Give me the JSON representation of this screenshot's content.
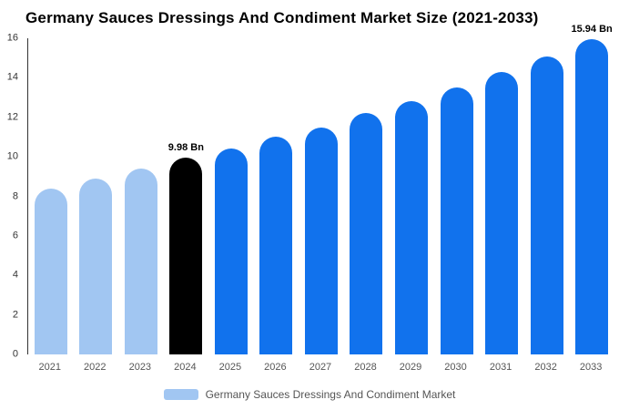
{
  "title": "Germany Sauces Dressings And Condiment Market Size (2021-2033)",
  "legend": {
    "label": "Germany Sauces Dressings And Condiment Market",
    "swatch_color": "#a1c6f2"
  },
  "axis": {
    "y_ticks": [
      0,
      2,
      4,
      6,
      8,
      10,
      12,
      14,
      16
    ]
  },
  "chart_data": {
    "type": "bar",
    "title": "Germany Sauces Dressings And Condiment Market Size (2021-2033)",
    "xlabel": "",
    "ylabel": "",
    "ylim": [
      0,
      16
    ],
    "grid": false,
    "legend_position": "bottom",
    "categories": [
      "2021",
      "2022",
      "2023",
      "2024",
      "2025",
      "2026",
      "2027",
      "2028",
      "2029",
      "2030",
      "2031",
      "2032",
      "2033"
    ],
    "values": [
      8.4,
      8.9,
      9.4,
      9.98,
      10.4,
      11.0,
      11.5,
      12.2,
      12.8,
      13.5,
      14.3,
      15.1,
      15.94
    ],
    "labels": [
      "",
      "",
      "",
      "9.98 Bn",
      "",
      "",
      "",
      "",
      "",
      "",
      "",
      "",
      "15.94 Bn"
    ],
    "roles": [
      "past",
      "past",
      "past",
      "current",
      "forecast",
      "forecast",
      "forecast",
      "forecast",
      "forecast",
      "forecast",
      "forecast",
      "forecast",
      "forecast"
    ],
    "colors": {
      "past": "#a1c6f2",
      "current": "#000000",
      "forecast": "#1172ed"
    }
  }
}
